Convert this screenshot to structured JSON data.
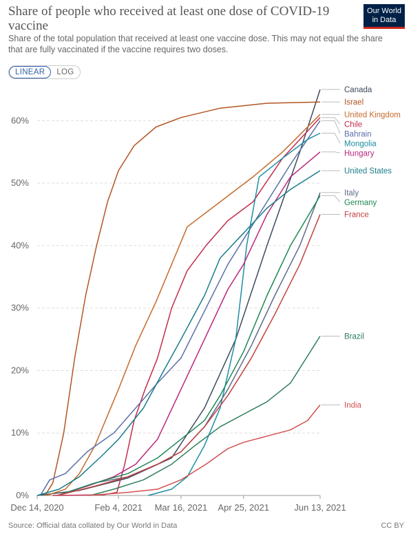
{
  "header": {
    "title": "Share of people who received at least one dose of COVID-19 vaccine",
    "subtitle": "Share of the total population that received at least one vaccine dose. This may not equal the share that are fully vaccinated if the vaccine requires two doses.",
    "logo_line1": "Our World",
    "logo_line2": "in Data"
  },
  "controls": {
    "linear_label": "LINEAR",
    "log_label": "LOG",
    "selected": "LINEAR"
  },
  "footer": {
    "source": "Source: Official data collated by Our World in Data",
    "license": "CC BY"
  },
  "chart_data": {
    "type": "line",
    "title": "Share of people who received at least one dose of COVID-19 vaccine",
    "xlabel": "",
    "ylabel": "",
    "x_range": [
      "2020-12-14",
      "2021-06-13"
    ],
    "x_ticks": [
      "Dec 14, 2020",
      "Feb 4, 2021",
      "Mar 16, 2021",
      "Apr 25, 2021",
      "Jun 13, 2021"
    ],
    "x_tick_dates": [
      "2020-12-14",
      "2021-02-04",
      "2021-03-16",
      "2021-04-25",
      "2021-06-13"
    ],
    "y_range": [
      0,
      65
    ],
    "y_ticks": [
      "0%",
      "10%",
      "20%",
      "30%",
      "40%",
      "50%",
      "60%"
    ],
    "y_tick_values": [
      0,
      10,
      20,
      30,
      40,
      50,
      60
    ],
    "grid": true,
    "legend": "line-end labels, right",
    "series": [
      {
        "name": "Canada",
        "color": "#3e4a5c",
        "points": [
          [
            "2020-12-14",
            0
          ],
          [
            "2021-01-10",
            0.8
          ],
          [
            "2021-02-10",
            2.8
          ],
          [
            "2021-03-10",
            6
          ],
          [
            "2021-03-31",
            14
          ],
          [
            "2021-04-20",
            25
          ],
          [
            "2021-05-10",
            40
          ],
          [
            "2021-05-31",
            55
          ],
          [
            "2021-06-13",
            65
          ]
        ]
      },
      {
        "name": "Israel",
        "color": "#b25521",
        "points": [
          [
            "2020-12-19",
            0
          ],
          [
            "2020-12-24",
            2
          ],
          [
            "2020-12-31",
            10
          ],
          [
            "2021-01-07",
            22
          ],
          [
            "2021-01-14",
            32
          ],
          [
            "2021-01-21",
            40
          ],
          [
            "2021-01-28",
            47
          ],
          [
            "2021-02-04",
            52
          ],
          [
            "2021-02-14",
            56
          ],
          [
            "2021-02-28",
            59
          ],
          [
            "2021-03-16",
            60.5
          ],
          [
            "2021-04-10",
            62
          ],
          [
            "2021-05-10",
            62.8
          ],
          [
            "2021-06-13",
            63
          ]
        ]
      },
      {
        "name": "United Kingdom",
        "color": "#c56a2a",
        "points": [
          [
            "2020-12-20",
            0
          ],
          [
            "2021-01-01",
            1
          ],
          [
            "2021-01-10",
            3.5
          ],
          [
            "2021-01-20",
            8
          ],
          [
            "2021-02-04",
            17
          ],
          [
            "2021-02-15",
            24
          ],
          [
            "2021-02-28",
            31
          ],
          [
            "2021-03-10",
            37
          ],
          [
            "2021-03-20",
            43
          ],
          [
            "2021-04-10",
            47
          ],
          [
            "2021-05-01",
            51
          ],
          [
            "2021-05-20",
            55
          ],
          [
            "2021-06-13",
            61
          ]
        ]
      },
      {
        "name": "Chile",
        "color": "#c22c4d",
        "points": [
          [
            "2020-12-24",
            0
          ],
          [
            "2021-01-25",
            0.1
          ],
          [
            "2021-02-03",
            0.5
          ],
          [
            "2021-02-08",
            5
          ],
          [
            "2021-02-14",
            12
          ],
          [
            "2021-02-21",
            17
          ],
          [
            "2021-03-01",
            22
          ],
          [
            "2021-03-10",
            30
          ],
          [
            "2021-03-20",
            36
          ],
          [
            "2021-04-01",
            40
          ],
          [
            "2021-04-15",
            44
          ],
          [
            "2021-05-01",
            47
          ],
          [
            "2021-05-20",
            54
          ],
          [
            "2021-06-13",
            60.5
          ]
        ]
      },
      {
        "name": "Bahrain",
        "color": "#5b6fa7",
        "points": [
          [
            "2020-12-16",
            0
          ],
          [
            "2020-12-22",
            2.5
          ],
          [
            "2021-01-01",
            3.5
          ],
          [
            "2021-01-15",
            7
          ],
          [
            "2021-02-01",
            10
          ],
          [
            "2021-02-15",
            14
          ],
          [
            "2021-03-01",
            18
          ],
          [
            "2021-03-16",
            22
          ],
          [
            "2021-04-01",
            30
          ],
          [
            "2021-04-15",
            37
          ],
          [
            "2021-04-25",
            41
          ],
          [
            "2021-05-10",
            47
          ],
          [
            "2021-05-25",
            53
          ],
          [
            "2021-06-13",
            60
          ]
        ]
      },
      {
        "name": "Mongolia",
        "color": "#1c8ea3",
        "points": [
          [
            "2021-02-23",
            0
          ],
          [
            "2021-03-10",
            1
          ],
          [
            "2021-03-20",
            3
          ],
          [
            "2021-03-31",
            8
          ],
          [
            "2021-04-10",
            14
          ],
          [
            "2021-04-20",
            25
          ],
          [
            "2021-04-27",
            40
          ],
          [
            "2021-05-05",
            51
          ],
          [
            "2021-05-20",
            54
          ],
          [
            "2021-06-05",
            57
          ],
          [
            "2021-06-13",
            58
          ]
        ]
      },
      {
        "name": "Hungary",
        "color": "#b8277d",
        "points": [
          [
            "2020-12-27",
            0
          ],
          [
            "2021-01-15",
            1.5
          ],
          [
            "2021-02-01",
            3
          ],
          [
            "2021-02-15",
            5
          ],
          [
            "2021-03-01",
            9
          ],
          [
            "2021-03-16",
            17
          ],
          [
            "2021-03-31",
            25
          ],
          [
            "2021-04-15",
            33
          ],
          [
            "2021-04-25",
            37
          ],
          [
            "2021-05-10",
            45
          ],
          [
            "2021-05-25",
            51
          ],
          [
            "2021-06-13",
            55
          ]
        ]
      },
      {
        "name": "United States",
        "color": "#187d8b",
        "points": [
          [
            "2020-12-14",
            0
          ],
          [
            "2020-12-28",
            1
          ],
          [
            "2021-01-10",
            3
          ],
          [
            "2021-01-25",
            6.5
          ],
          [
            "2021-02-04",
            9
          ],
          [
            "2021-02-20",
            14
          ],
          [
            "2021-03-05",
            20
          ],
          [
            "2021-03-16",
            25
          ],
          [
            "2021-03-31",
            32
          ],
          [
            "2021-04-10",
            38
          ],
          [
            "2021-04-25",
            42
          ],
          [
            "2021-05-10",
            46
          ],
          [
            "2021-05-25",
            49
          ],
          [
            "2021-06-13",
            52
          ]
        ]
      },
      {
        "name": "Italy",
        "color": "#5e6b8a",
        "points": [
          [
            "2020-12-27",
            0
          ],
          [
            "2021-01-20",
            2
          ],
          [
            "2021-02-10",
            3
          ],
          [
            "2021-03-01",
            5
          ],
          [
            "2021-03-16",
            7
          ],
          [
            "2021-03-31",
            11
          ],
          [
            "2021-04-15",
            17
          ],
          [
            "2021-04-30",
            24
          ],
          [
            "2021-05-15",
            32
          ],
          [
            "2021-05-31",
            40
          ],
          [
            "2021-06-13",
            48.5
          ]
        ]
      },
      {
        "name": "Germany",
        "color": "#1f8755",
        "points": [
          [
            "2020-12-27",
            0
          ],
          [
            "2021-01-20",
            2
          ],
          [
            "2021-02-10",
            3.5
          ],
          [
            "2021-03-01",
            6
          ],
          [
            "2021-03-16",
            9
          ],
          [
            "2021-03-31",
            12
          ],
          [
            "2021-04-10",
            16
          ],
          [
            "2021-04-25",
            23
          ],
          [
            "2021-05-10",
            32
          ],
          [
            "2021-05-25",
            40
          ],
          [
            "2021-06-13",
            48
          ]
        ]
      },
      {
        "name": "France",
        "color": "#c2413e",
        "points": [
          [
            "2020-12-27",
            0
          ],
          [
            "2021-01-20",
            1.5
          ],
          [
            "2021-02-10",
            3
          ],
          [
            "2021-03-01",
            5
          ],
          [
            "2021-03-16",
            7
          ],
          [
            "2021-03-31",
            11
          ],
          [
            "2021-04-15",
            16
          ],
          [
            "2021-04-30",
            22
          ],
          [
            "2021-05-15",
            29
          ],
          [
            "2021-05-31",
            37
          ],
          [
            "2021-06-13",
            45
          ]
        ]
      },
      {
        "name": "Brazil",
        "color": "#2f7d5b",
        "points": [
          [
            "2021-01-17",
            0
          ],
          [
            "2021-02-01",
            1
          ],
          [
            "2021-02-20",
            2.5
          ],
          [
            "2021-03-10",
            5
          ],
          [
            "2021-03-25",
            8
          ],
          [
            "2021-04-10",
            11
          ],
          [
            "2021-04-25",
            13
          ],
          [
            "2021-05-10",
            15
          ],
          [
            "2021-05-25",
            18
          ],
          [
            "2021-06-13",
            25.5
          ]
        ]
      },
      {
        "name": "India",
        "color": "#d25050",
        "points": [
          [
            "2021-01-16",
            0
          ],
          [
            "2021-02-10",
            0.5
          ],
          [
            "2021-03-01",
            1
          ],
          [
            "2021-03-16",
            2.5
          ],
          [
            "2021-04-01",
            5
          ],
          [
            "2021-04-15",
            7.5
          ],
          [
            "2021-04-25",
            8.5
          ],
          [
            "2021-05-10",
            9.5
          ],
          [
            "2021-05-25",
            10.5
          ],
          [
            "2021-06-05",
            12
          ],
          [
            "2021-06-13",
            14.5
          ]
        ]
      }
    ]
  }
}
